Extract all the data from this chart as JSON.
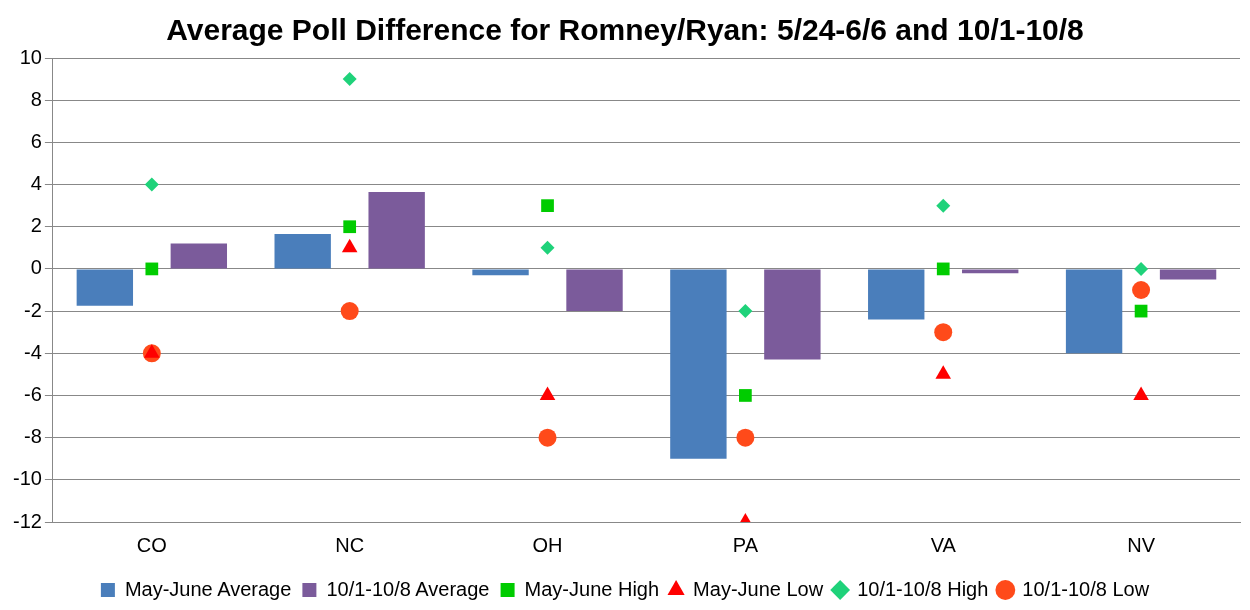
{
  "chart_data": {
    "type": "bar",
    "title": "Average Poll Difference for Romney/Ryan: 5/24-6/6 and 10/1-10/8",
    "categories": [
      "CO",
      "NC",
      "OH",
      "PA",
      "VA",
      "NV"
    ],
    "series": [
      {
        "name": "May-June Average",
        "color": "#4a7ebb",
        "values": [
          -1.75,
          1.65,
          -0.3,
          -9,
          -2.4,
          -4
        ]
      },
      {
        "name": "10/1-10/8 Average",
        "color": "#7b5b9b",
        "values": [
          1.2,
          3.65,
          -2,
          -4.3,
          -0.2,
          -0.5
        ]
      },
      {
        "name": "May-June High",
        "type": "scatter",
        "marker": "square",
        "color": "#00cc00",
        "values": [
          0,
          2,
          3,
          -6,
          0,
          -2
        ]
      },
      {
        "name": "May-June Low",
        "type": "scatter",
        "marker": "triangle",
        "color": "#ff0000",
        "values": [
          -4,
          1,
          -6,
          -12,
          -5,
          -6
        ]
      },
      {
        "name": "10/1-10/8 High",
        "type": "scatter",
        "marker": "diamond",
        "color": "#1fd27a",
        "values": [
          4,
          9,
          1,
          -2,
          3,
          0
        ]
      },
      {
        "name": "10/1-10/8 Low",
        "type": "scatter",
        "marker": "circle",
        "color": "#ff4a1a",
        "values": [
          -4,
          -2,
          -8,
          -8,
          -3,
          -1
        ]
      }
    ],
    "ylim": [
      -12,
      10
    ],
    "yticks": [
      -12,
      -10,
      -8,
      -6,
      -4,
      -2,
      0,
      2,
      4,
      6,
      8,
      10
    ],
    "grid": "y",
    "legend": "bottom"
  }
}
